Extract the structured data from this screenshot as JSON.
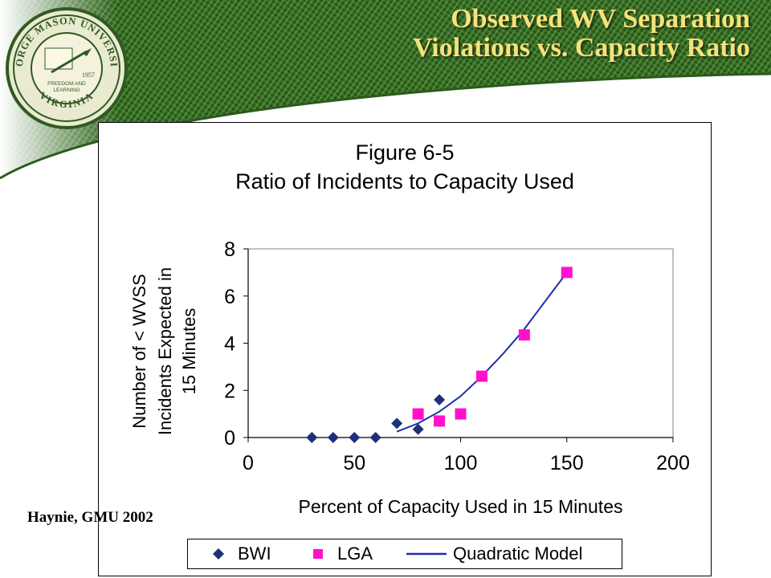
{
  "slide": {
    "title_line1": "Observed WV Separation",
    "title_line2": "Violations vs. Capacity Ratio",
    "credit": "Haynie, GMU 2002",
    "logo": {
      "ring_text_top": "GEORGE MASON UNIVERSITY",
      "ring_text_bottom": "VIRGINIA",
      "center_text": [
        "FREEDOM AND",
        "LEARNING"
      ],
      "year": "1957"
    }
  },
  "chart_data": {
    "type": "scatter",
    "title_line1": "Figure 6-5",
    "title_line2": "Ratio of Incidents to Capacity Used",
    "xlabel": "Percent of Capacity Used in 15 Minutes",
    "ylabel_lines": [
      "Number of < WVSS",
      "Incidents Expected  in",
      "15 Minutes"
    ],
    "xlim": [
      0,
      200
    ],
    "ylim": [
      0,
      8
    ],
    "xticks": [
      "0",
      "50",
      "100",
      "150",
      "200"
    ],
    "yticks": [
      "0",
      "2",
      "4",
      "6",
      "8"
    ],
    "grid": false,
    "legend_position": "bottom",
    "series": [
      {
        "name": "BWI",
        "marker": "diamond",
        "color": "#1f2f7a",
        "points": [
          [
            30,
            0
          ],
          [
            40,
            0
          ],
          [
            50,
            0
          ],
          [
            60,
            0
          ],
          [
            70,
            0.6
          ],
          [
            80,
            0.35
          ],
          [
            90,
            1.6
          ]
        ]
      },
      {
        "name": "LGA",
        "marker": "square",
        "color": "#ff11cc",
        "points": [
          [
            80,
            1.0
          ],
          [
            90,
            0.7
          ],
          [
            100,
            1.0
          ],
          [
            110,
            2.6
          ],
          [
            130,
            4.35
          ],
          [
            150,
            7.0
          ]
        ]
      },
      {
        "name": "Quadratic Model",
        "marker": "line",
        "color": "#1f2fa8",
        "points": [
          [
            70,
            0.25
          ],
          [
            80,
            0.6
          ],
          [
            90,
            1.1
          ],
          [
            100,
            1.75
          ],
          [
            110,
            2.6
          ],
          [
            120,
            3.55
          ],
          [
            130,
            4.6
          ],
          [
            140,
            5.8
          ],
          [
            150,
            7.0
          ]
        ]
      }
    ]
  }
}
